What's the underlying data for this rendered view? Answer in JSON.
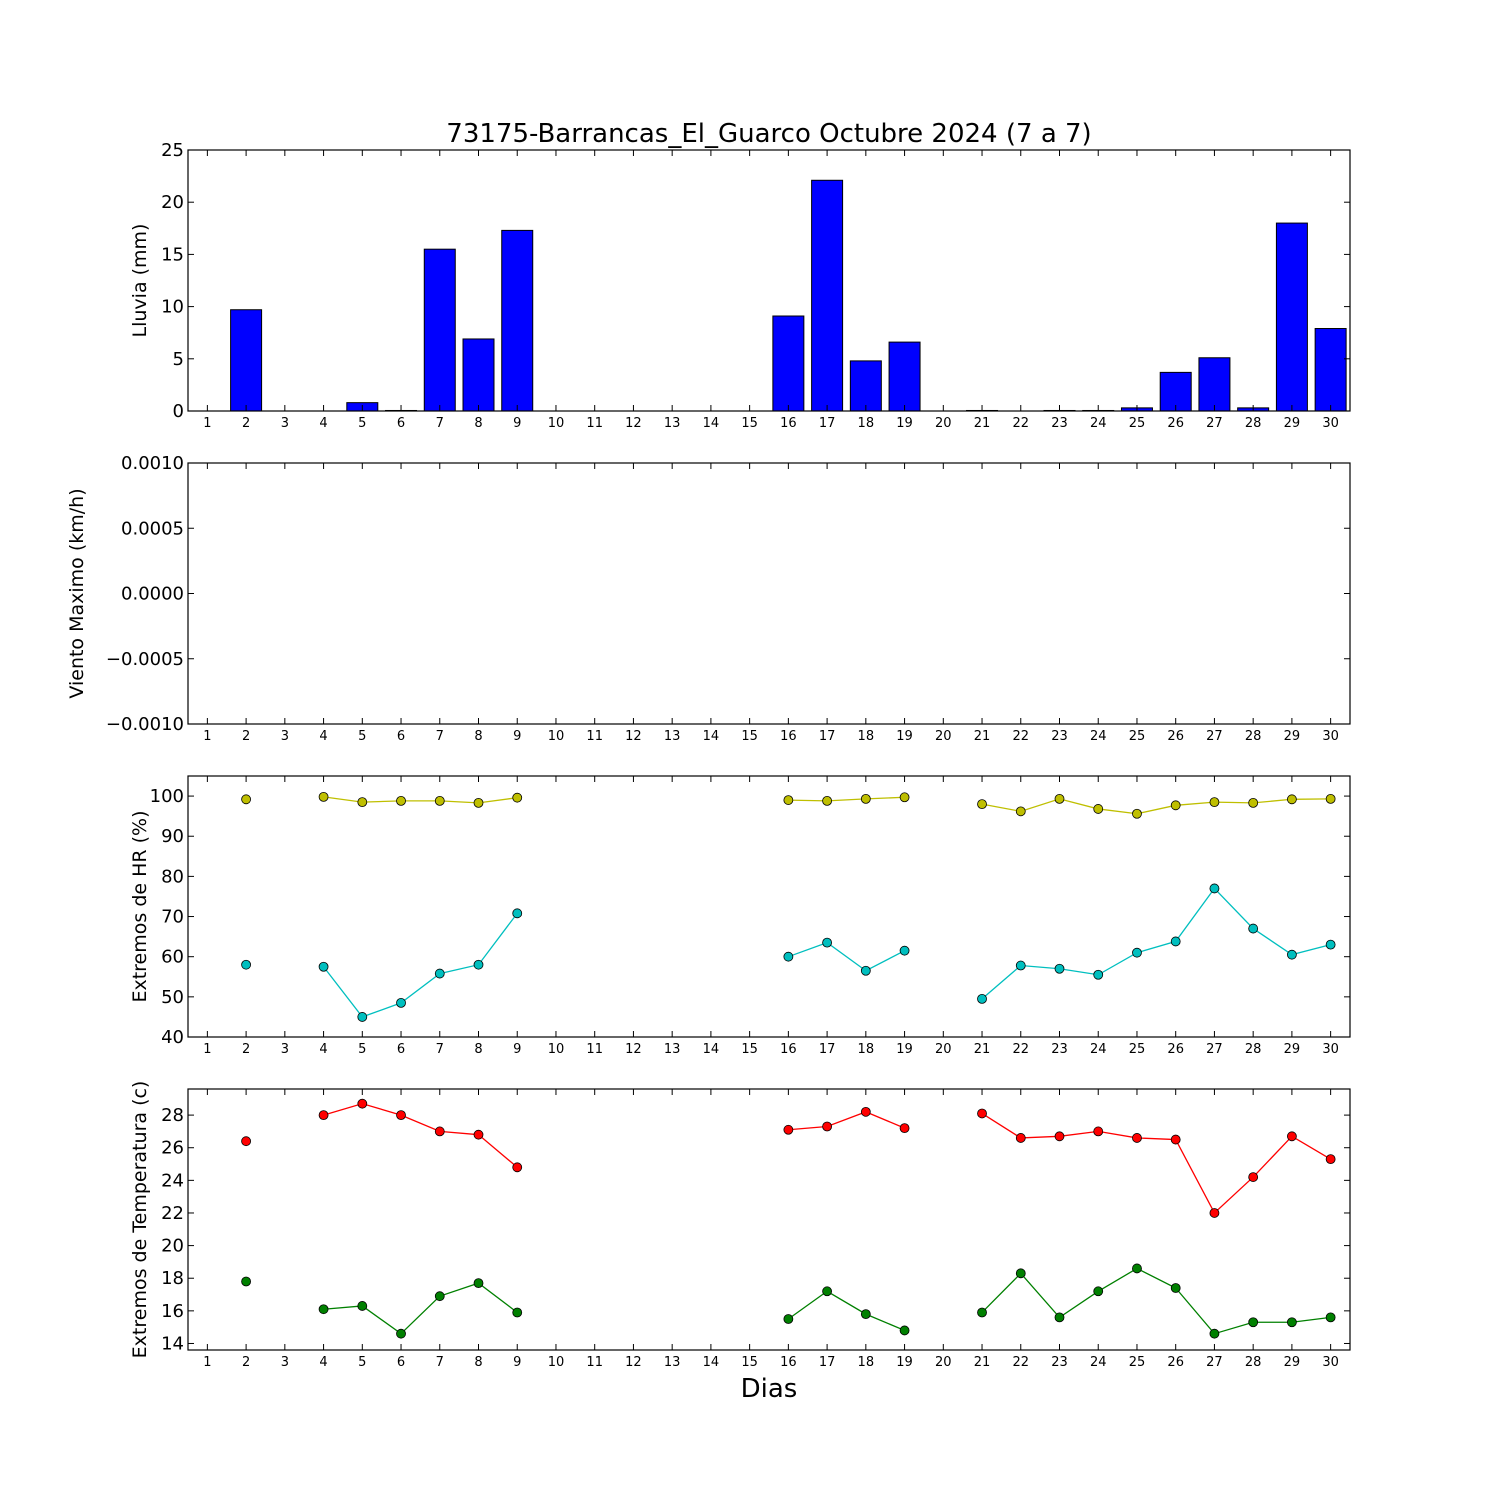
{
  "title": "73175-Barrancas_El_Guarco Octubre 2024  (7 a 7)",
  "xlabel": "Dias",
  "colors": {
    "bar": "#0000ff",
    "hr_max": "#bfbf00",
    "hr_min": "#00bfbf",
    "temp_max": "#ff0000",
    "temp_min": "#008000"
  },
  "chart_data": [
    {
      "id": "lluvia",
      "type": "bar",
      "ylabel": "Lluvia (mm)",
      "ylim": [
        0,
        25
      ],
      "yticks": [
        0,
        5,
        10,
        15,
        20,
        25
      ],
      "ytick_labels": [
        "0",
        "5",
        "10",
        "15",
        "20",
        "25"
      ],
      "xlim": [
        0.5,
        30.5
      ],
      "xticks": [
        1,
        2,
        3,
        4,
        5,
        6,
        7,
        8,
        9,
        10,
        11,
        12,
        13,
        14,
        15,
        16,
        17,
        18,
        19,
        20,
        21,
        22,
        23,
        24,
        25,
        26,
        27,
        28,
        29,
        30
      ],
      "series": [
        {
          "x": [
            2,
            5,
            6,
            7,
            8,
            9,
            16,
            17,
            18,
            19,
            21,
            23,
            24,
            25,
            26,
            27,
            28,
            29,
            30
          ],
          "values": [
            9.7,
            0.8,
            0.05,
            15.5,
            6.9,
            17.3,
            9.1,
            22.1,
            4.8,
            6.6,
            0.05,
            0.05,
            0.05,
            0.3,
            3.7,
            5.1,
            0.3,
            18.0,
            7.9
          ]
        }
      ]
    },
    {
      "id": "viento",
      "type": "line",
      "ylabel": "Viento Maximo (km/h)",
      "ylim": [
        -0.001,
        0.001
      ],
      "yticks": [
        -0.001,
        -0.0005,
        0,
        0.0005,
        0.001
      ],
      "ytick_labels": [
        "−0.0010",
        "−0.0005",
        "0.0000",
        "0.0005",
        "0.0010"
      ],
      "xlim": [
        0.5,
        30.5
      ],
      "xticks": [
        1,
        2,
        3,
        4,
        5,
        6,
        7,
        8,
        9,
        10,
        11,
        12,
        13,
        14,
        15,
        16,
        17,
        18,
        19,
        20,
        21,
        22,
        23,
        24,
        25,
        26,
        27,
        28,
        29,
        30
      ],
      "series": []
    },
    {
      "id": "hr",
      "type": "line",
      "ylabel": "Extremos de HR (%)",
      "ylim": [
        40,
        105
      ],
      "yticks": [
        40,
        50,
        60,
        70,
        80,
        90,
        100
      ],
      "ytick_labels": [
        "40",
        "50",
        "60",
        "70",
        "80",
        "90",
        "100"
      ],
      "xlim": [
        0.5,
        30.5
      ],
      "xticks": [
        1,
        2,
        3,
        4,
        5,
        6,
        7,
        8,
        9,
        10,
        11,
        12,
        13,
        14,
        15,
        16,
        17,
        18,
        19,
        20,
        21,
        22,
        23,
        24,
        25,
        26,
        27,
        28,
        29,
        30
      ],
      "series": [
        {
          "color_key": "hr_max",
          "x": [
            2,
            null,
            4,
            5,
            6,
            7,
            8,
            9,
            null,
            16,
            17,
            18,
            19,
            null,
            21,
            22,
            23,
            24,
            25,
            26,
            27,
            28,
            29,
            30
          ],
          "values": [
            99.2,
            null,
            99.8,
            98.5,
            98.8,
            98.8,
            98.3,
            99.6,
            null,
            99.0,
            98.8,
            99.3,
            99.7,
            null,
            98.0,
            96.2,
            99.3,
            96.8,
            95.6,
            97.7,
            98.5,
            98.3,
            99.2,
            99.3
          ]
        },
        {
          "color_key": "hr_min",
          "x": [
            2,
            null,
            4,
            5,
            6,
            7,
            8,
            9,
            null,
            16,
            17,
            18,
            19,
            null,
            21,
            22,
            23,
            24,
            25,
            26,
            27,
            28,
            29,
            30
          ],
          "values": [
            58.0,
            null,
            57.5,
            45.0,
            48.5,
            55.8,
            58.0,
            70.8,
            null,
            60.0,
            63.5,
            56.5,
            61.5,
            null,
            49.5,
            57.8,
            57.0,
            55.5,
            61.0,
            63.8,
            77.0,
            67.0,
            60.5,
            63.0
          ]
        }
      ]
    },
    {
      "id": "temp",
      "type": "line",
      "ylabel": "Extremos de Temperatura (c)",
      "ylim": [
        13.6,
        29.6
      ],
      "yticks": [
        14,
        16,
        18,
        20,
        22,
        24,
        26,
        28
      ],
      "ytick_labels": [
        "14",
        "16",
        "18",
        "20",
        "22",
        "24",
        "26",
        "28"
      ],
      "xlim": [
        0.5,
        30.5
      ],
      "xticks": [
        1,
        2,
        3,
        4,
        5,
        6,
        7,
        8,
        9,
        10,
        11,
        12,
        13,
        14,
        15,
        16,
        17,
        18,
        19,
        20,
        21,
        22,
        23,
        24,
        25,
        26,
        27,
        28,
        29,
        30
      ],
      "series": [
        {
          "color_key": "temp_max",
          "x": [
            2,
            null,
            4,
            5,
            6,
            7,
            8,
            9,
            null,
            16,
            17,
            18,
            19,
            null,
            21,
            22,
            23,
            24,
            25,
            26,
            27,
            28,
            29,
            30
          ],
          "values": [
            26.4,
            null,
            28.0,
            28.7,
            28.0,
            27.0,
            26.8,
            24.8,
            null,
            27.1,
            27.3,
            28.2,
            27.2,
            null,
            28.1,
            26.6,
            26.7,
            27.0,
            26.6,
            26.5,
            22.0,
            24.2,
            26.7,
            25.3
          ]
        },
        {
          "color_key": "temp_min",
          "x": [
            2,
            null,
            4,
            5,
            6,
            7,
            8,
            9,
            null,
            16,
            17,
            18,
            19,
            null,
            21,
            22,
            23,
            24,
            25,
            26,
            27,
            28,
            29,
            30
          ],
          "values": [
            17.8,
            null,
            16.1,
            16.3,
            14.6,
            16.9,
            17.7,
            15.9,
            null,
            15.5,
            17.2,
            15.8,
            14.8,
            null,
            15.9,
            18.3,
            15.6,
            17.2,
            18.6,
            17.4,
            14.6,
            15.3,
            15.3,
            15.6
          ]
        }
      ]
    }
  ]
}
